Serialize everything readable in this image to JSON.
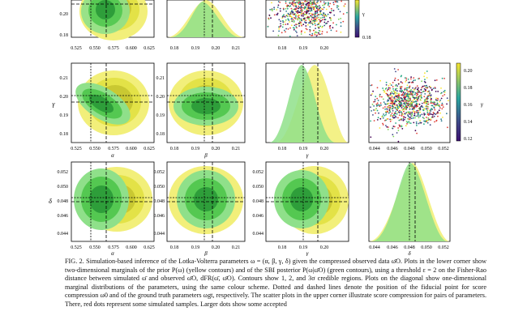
{
  "figure": {
    "colors": {
      "prior_yellow_outer": "#f2ef7a",
      "prior_yellow_mid": "#e3e247",
      "prior_yellow_inner": "#c9c832",
      "posterior_green_outer": "#8fe08a",
      "posterior_green_mid": "#54c851",
      "posterior_green_inner": "#2e9e3a",
      "panel_frame": "#000000",
      "colorbar_top": "#f7e530",
      "colorbar_mid": "#2aa6a0",
      "colorbar_low": "#3e4a89",
      "colorbar_bottom": "#3b0f70"
    },
    "row1": {
      "p1_yticks": [
        "0.20",
        "0.19",
        "0.18"
      ],
      "p1_xticks": [
        "0.525",
        "0.550",
        "0.575",
        "0.600",
        "0.625"
      ],
      "p2_xticks": [
        "0.18",
        "0.19",
        "0.20",
        "0.21"
      ],
      "p3_xticks": [
        "0.18",
        "0.19",
        "0.20"
      ],
      "colorbar_ticks": [
        "0.18"
      ],
      "colorbar_label": "γ"
    },
    "row2": {
      "p1_yticks": [
        "0.21",
        "0.20",
        "0.19",
        "0.18"
      ],
      "p1_ylabel": "γ",
      "p1_xticks": [
        "0.525",
        "0.550",
        "0.575",
        "0.600",
        "0.625"
      ],
      "p1_xlabel": "α",
      "p2_yticks": [
        "0.21",
        "0.20",
        "0.19",
        "0.18"
      ],
      "p2_xticks": [
        "0.18",
        "0.19",
        "0.20",
        "0.21"
      ],
      "p2_xlabel": "β",
      "p3_xticks": [
        "0.18",
        "0.19",
        "0.20"
      ],
      "p3_xlabel": "γ",
      "p4_xticks": [
        "0.044",
        "0.046",
        "0.048",
        "0.050",
        "0.052"
      ],
      "colorbar_ticks": [
        "0.20",
        "0.18",
        "0.16",
        "0.14",
        "0.12"
      ],
      "colorbar_label": "γ"
    },
    "row3": {
      "p1_yticks": [
        "0.052",
        "0.050",
        "0.048",
        "0.046",
        "0.044"
      ],
      "p1_ylabel": "δ",
      "p1_xticks": [
        "0.525",
        "0.550",
        "0.575",
        "0.600",
        "0.625"
      ],
      "p1_xlabel": "α",
      "p2_yticks": [
        "0.052",
        "0.050",
        "0.048",
        "0.046",
        "0.044"
      ],
      "p2_xticks": [
        "0.18",
        "0.19",
        "0.20",
        "0.21"
      ],
      "p2_xlabel": "β",
      "p3_yticks": [
        "0.052",
        "0.050",
        "0.048",
        "0.046",
        "0.044"
      ],
      "p3_xticks": [
        "0.18",
        "0.19",
        "0.20"
      ],
      "p3_xlabel": "γ",
      "p4_xticks": [
        "0.044",
        "0.046",
        "0.048",
        "0.050",
        "0.052"
      ],
      "p4_xlabel": "δ"
    }
  },
  "caption": {
    "label": "FIG. 2.",
    "text": "Simulation-based inference of the Lotka-Volterra parameters ω = (α, β, γ, δ) given the compressed observed data ω̄O. Plots in the lower corner show two-dimensional marginals of the prior P(ω) (yellow contours) and of the SBI posterior P(ω|ω̄O) (green contours), using a threshold ε = 2 on the Fisher-Rao distance between simulated ω̄ and observed ω̄O, dFR(ω̄, ω̄O). Contours show 1, 2, and 3σ credible regions. Plots on the diagonal show one-dimensional marginal distributions of the parameters, using the same colour scheme. Dotted and dashed lines denote the position of the fiducial point for score compression ω0 and of the ground truth parameters ωgt, respectively. The scatter plots in the upper corner illustrate score compression for pairs of parameters. There, red dots represent some simulated samples. Larger dots show some accepted"
  }
}
